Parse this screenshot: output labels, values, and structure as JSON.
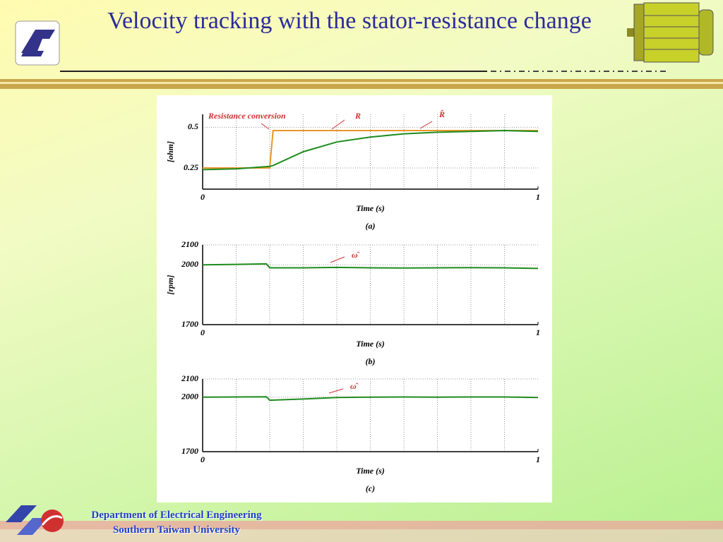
{
  "header": {
    "title": "Velocity tracking with the stator-resistance change"
  },
  "footer": {
    "department": "Department of Electrical Engineering",
    "university": "Southern Taiwan University"
  },
  "chart_data": [
    {
      "type": "line",
      "caption": "(a)",
      "xlabel": "Time (s)",
      "ylabel": "[ohm]",
      "annotations": [
        "Resistance conversion"
      ],
      "x": [
        0,
        0.1,
        0.2,
        0.21,
        0.3,
        0.4,
        0.5,
        0.6,
        0.7,
        0.8,
        0.9,
        1
      ],
      "xlim": [
        0,
        1
      ],
      "xticks": [
        0,
        1
      ],
      "ylim": [
        0.12,
        0.58
      ],
      "yticks": [
        0.25,
        0.5
      ],
      "grid": true,
      "series": [
        {
          "name": "R",
          "color": "#e8962a",
          "values": [
            0.25,
            0.25,
            0.25,
            0.48,
            0.48,
            0.48,
            0.48,
            0.48,
            0.48,
            0.48,
            0.48,
            0.48
          ]
        },
        {
          "name": "R̂",
          "color": "#1e8c1e",
          "values": [
            0.24,
            0.245,
            0.26,
            0.265,
            0.35,
            0.41,
            0.44,
            0.46,
            0.47,
            0.475,
            0.48,
            0.475
          ]
        }
      ]
    },
    {
      "type": "line",
      "caption": "(b)",
      "xlabel": "Time (s)",
      "ylabel": "[rpm]",
      "x": [
        0,
        0.1,
        0.19,
        0.2,
        0.3,
        0.4,
        0.5,
        0.6,
        0.7,
        0.8,
        0.9,
        1
      ],
      "xlim": [
        0,
        1
      ],
      "xticks": [
        0,
        1
      ],
      "ylim": [
        1700,
        2100
      ],
      "yticks": [
        1700,
        2000,
        2100
      ],
      "grid": true,
      "series": [
        {
          "name": "ω̂",
          "color": "#1e8c1e",
          "values": [
            2000,
            2002,
            2005,
            1985,
            1985,
            1987,
            1985,
            1984,
            1985,
            1986,
            1985,
            1982
          ]
        }
      ]
    },
    {
      "type": "line",
      "caption": "(c)",
      "xlabel": "Time (s)",
      "ylabel": "",
      "x": [
        0,
        0.1,
        0.19,
        0.2,
        0.3,
        0.4,
        0.5,
        0.6,
        0.7,
        0.8,
        0.9,
        1
      ],
      "xlim": [
        0,
        1
      ],
      "xticks": [
        0,
        1
      ],
      "ylim": [
        1700,
        2100
      ],
      "yticks": [
        1700,
        2000,
        2100
      ],
      "grid": true,
      "series": [
        {
          "name": "ω̂",
          "color": "#1e8c1e",
          "values": [
            2000,
            2001,
            2002,
            1983,
            1990,
            1998,
            2000,
            2001,
            2000,
            2001,
            2001,
            1998
          ]
        }
      ]
    }
  ]
}
